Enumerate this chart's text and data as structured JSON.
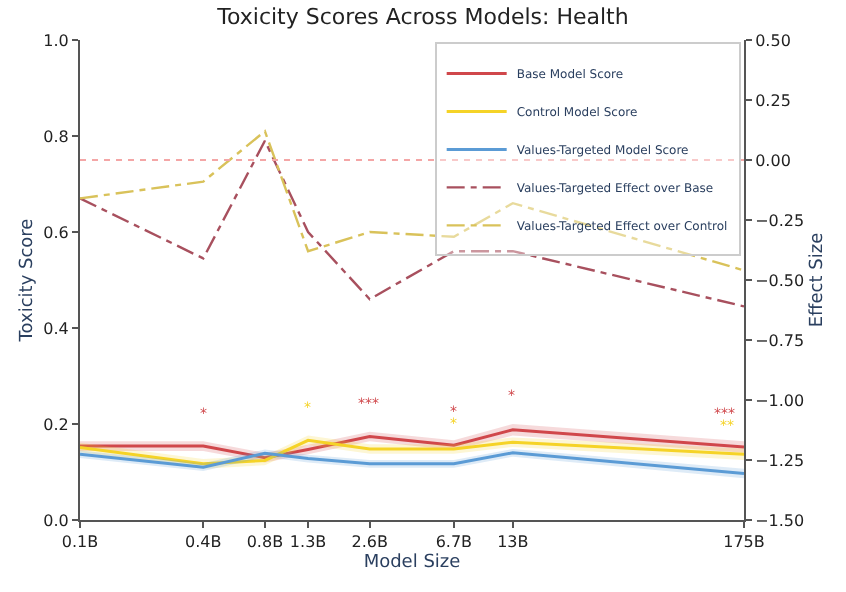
{
  "chart_data": {
    "type": "line",
    "title": "Toxicity Scores Across Models: Health",
    "xlabel": "Model Size",
    "ylabel": "Toxicity Score",
    "y2label": "Effect Size",
    "x": [
      0.1,
      0.4,
      0.8,
      1.3,
      2.6,
      6.7,
      13,
      175
    ],
    "log": "x",
    "xlim": [
      0.1,
      175
    ],
    "xticks": [
      {
        "value": 0.1,
        "label": "0.1B"
      },
      {
        "value": 0.4,
        "label": "0.4B"
      },
      {
        "value": 0.8,
        "label": "0.8B"
      },
      {
        "value": 1.3,
        "label": "1.3B"
      },
      {
        "value": 2.6,
        "label": "2.6B"
      },
      {
        "value": 6.7,
        "label": "6.7B"
      },
      {
        "value": 13,
        "label": "13B"
      },
      {
        "value": 175,
        "label": "175B"
      }
    ],
    "ylim": [
      0,
      1
    ],
    "yticks": [
      {
        "value": 0,
        "label": "0.0"
      },
      0.2,
      0.4,
      0.6,
      0.8,
      {
        "value": 1,
        "label": "1.0"
      }
    ],
    "y2lim": [
      -1.5,
      0.5
    ],
    "y2ticks": [
      {
        "value": -1.5,
        "label": "−1.50"
      },
      {
        "value": -1.25,
        "label": "−1.25"
      },
      {
        "value": -1,
        "label": "−1.00"
      },
      {
        "value": -0.75,
        "label": "−0.75"
      },
      {
        "value": -0.5,
        "label": "−0.50"
      },
      {
        "value": -0.25,
        "label": "−0.25"
      },
      {
        "value": 0,
        "label": "0.00"
      },
      0.25,
      {
        "value": 0.5,
        "label": "0.50"
      }
    ],
    "series": [
      {
        "name": "Base Model Score",
        "color": "#d0474b",
        "line_style": "solid",
        "values": [
          0.154,
          0.154,
          0.13,
          0.147,
          0.174,
          0.156,
          0.188,
          0.152
        ],
        "lower": [
          0.144,
          0.144,
          0.12,
          0.137,
          0.164,
          0.146,
          0.176,
          0.14
        ],
        "upper": [
          0.164,
          0.164,
          0.14,
          0.157,
          0.184,
          0.166,
          0.2,
          0.164
        ]
      },
      {
        "name": "Control Model Score",
        "color": "#f5d327",
        "line_style": "solid",
        "values": [
          0.151,
          0.117,
          0.124,
          0.166,
          0.148,
          0.148,
          0.162,
          0.137
        ],
        "lower": [
          0.141,
          0.107,
          0.114,
          0.156,
          0.138,
          0.138,
          0.152,
          0.125
        ],
        "upper": [
          0.161,
          0.127,
          0.134,
          0.176,
          0.158,
          0.158,
          0.172,
          0.149
        ]
      },
      {
        "name": "Values-Targeted Model Score",
        "color": "#5b9bd5",
        "line_style": "solid",
        "values": [
          0.137,
          0.11,
          0.139,
          0.128,
          0.117,
          0.117,
          0.14,
          0.097
        ],
        "lower": [
          0.129,
          0.102,
          0.131,
          0.12,
          0.109,
          0.109,
          0.132,
          0.087
        ],
        "upper": [
          0.145,
          0.118,
          0.147,
          0.136,
          0.125,
          0.125,
          0.148,
          0.107
        ]
      },
      {
        "name": "Values-Targeted Effect over Base",
        "color": "#a8505e",
        "line_style": "dashdot",
        "axis": "y2",
        "values": [
          -0.16,
          -0.41,
          0.08,
          -0.3,
          -0.58,
          -0.38,
          -0.38,
          -0.61
        ]
      },
      {
        "name": "Values-Targeted Effect over Control",
        "color": "#d9c25a",
        "line_style": "dashdot",
        "axis": "y2",
        "values": [
          -0.16,
          -0.09,
          0.12,
          -0.38,
          -0.3,
          -0.32,
          -0.18,
          -0.46
        ]
      }
    ],
    "ref_lines": [
      {
        "axis": "y2",
        "value": 0,
        "color": "#f4a6a6",
        "line_style": "dotted"
      }
    ],
    "annotations": [
      {
        "text": "*",
        "x": 0.4,
        "y": 0.154
      },
      {
        "text": "*",
        "x": 1.3,
        "y": 0.166
      },
      {
        "text": "***",
        "x": 2.6,
        "y": 0.174
      },
      {
        "text": "*",
        "x": 6.7,
        "y": 0.156
      },
      {
        "text": "*",
        "x": 6.7,
        "y": 0.148
      },
      {
        "text": "*",
        "x": 13,
        "y": 0.188
      },
      {
        "text": "***",
        "x": 175,
        "y": 0.152
      },
      {
        "text": "**",
        "x": 175,
        "y": 0.137
      }
    ],
    "legend": "top right"
  }
}
